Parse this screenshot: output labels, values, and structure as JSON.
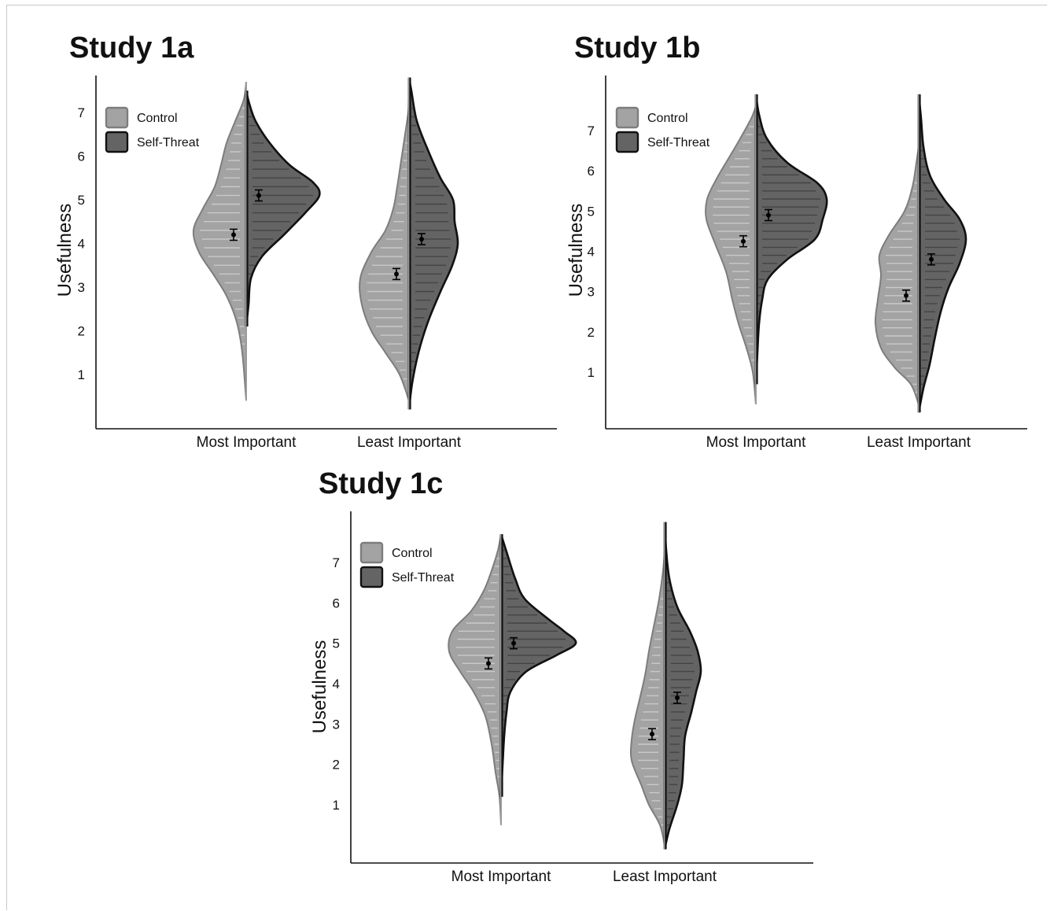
{
  "colors": {
    "control_fill": "#a3a3a3",
    "control_stroke": "#7d7d7d",
    "threat_fill": "#646464",
    "threat_stroke": "#111111",
    "axis": "#111111"
  },
  "chart_data": [
    {
      "id": "1a",
      "type": "violin",
      "title": "Study 1a",
      "ylabel": "Usefulness",
      "yticks": [
        1,
        2,
        3,
        4,
        5,
        6,
        7
      ],
      "categories": [
        "Most Important",
        "Least Important"
      ],
      "legend": [
        {
          "name": "Control",
          "color": "#a3a3a3"
        },
        {
          "name": "Self-Threat",
          "color": "#646464"
        }
      ],
      "legend_position": "top-left",
      "series": [
        {
          "name": "Control",
          "means": [
            4.2,
            3.3
          ]
        },
        {
          "name": "Self-Threat",
          "means": [
            5.1,
            4.1
          ]
        }
      ]
    },
    {
      "id": "1b",
      "type": "violin",
      "title": "Study 1b",
      "ylabel": "Usefulness",
      "yticks": [
        1,
        2,
        3,
        4,
        5,
        6,
        7
      ],
      "categories": [
        "Most Important",
        "Least Important"
      ],
      "legend": [
        {
          "name": "Control",
          "color": "#a3a3a3"
        },
        {
          "name": "Self-Threat",
          "color": "#646464"
        }
      ],
      "legend_position": "top-left",
      "series": [
        {
          "name": "Control",
          "means": [
            4.25,
            2.9
          ]
        },
        {
          "name": "Self-Threat",
          "means": [
            4.9,
            3.8
          ]
        }
      ]
    },
    {
      "id": "1c",
      "type": "violin",
      "title": "Study 1c",
      "ylabel": "Usefulness",
      "yticks": [
        1,
        2,
        3,
        4,
        5,
        6,
        7
      ],
      "categories": [
        "Most Important",
        "Least Important"
      ],
      "legend": [
        {
          "name": "Control",
          "color": "#a3a3a3"
        },
        {
          "name": "Self-Threat",
          "color": "#646464"
        }
      ],
      "legend_position": "top-left",
      "series": [
        {
          "name": "Control",
          "means": [
            4.5,
            2.75
          ]
        },
        {
          "name": "Self-Threat",
          "means": [
            5.0,
            3.65
          ]
        }
      ]
    }
  ]
}
